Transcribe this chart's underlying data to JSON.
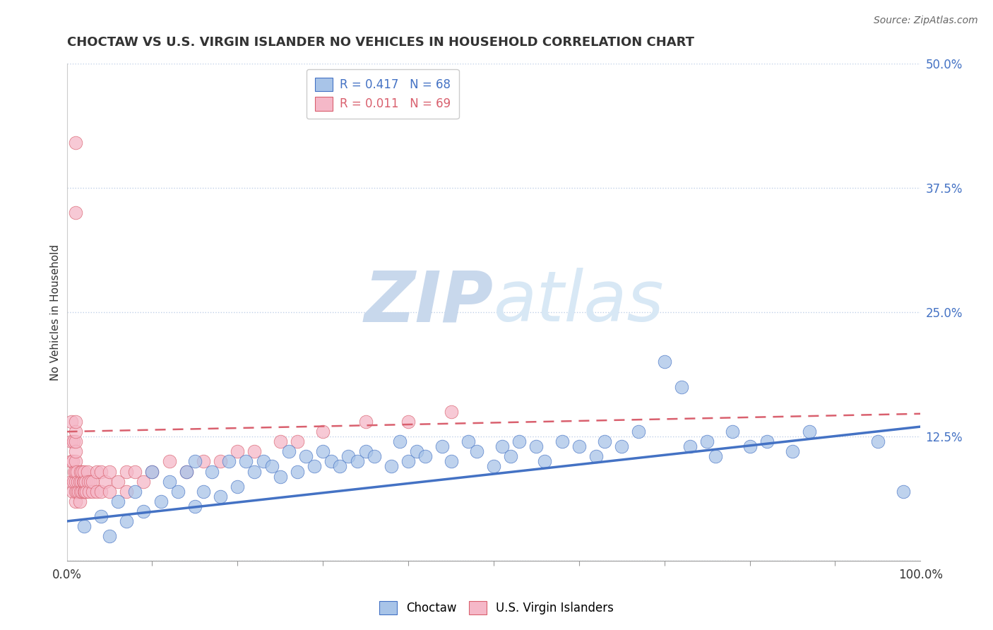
{
  "title": "CHOCTAW VS U.S. VIRGIN ISLANDER NO VEHICLES IN HOUSEHOLD CORRELATION CHART",
  "source_text": "Source: ZipAtlas.com",
  "ylabel": "No Vehicles in Household",
  "xlim": [
    0.0,
    1.0
  ],
  "ylim": [
    0.0,
    0.5
  ],
  "yticks": [
    0.0,
    0.125,
    0.25,
    0.375,
    0.5
  ],
  "ytick_labels": [
    "",
    "12.5%",
    "25.0%",
    "37.5%",
    "50.0%"
  ],
  "xtick_labels": [
    "0.0%",
    "100.0%"
  ],
  "legend_blue_r": "R = 0.417",
  "legend_blue_n": "N = 68",
  "legend_pink_r": "R = 0.011",
  "legend_pink_n": "N = 69",
  "blue_color": "#a8c4e8",
  "pink_color": "#f5b8c8",
  "blue_line_color": "#4472c4",
  "pink_line_color": "#d9606e",
  "watermark_zip": "ZIP",
  "watermark_atlas": "atlas",
  "watermark_color": "#dce8f5",
  "blue_scatter_x": [
    0.02,
    0.04,
    0.05,
    0.06,
    0.07,
    0.08,
    0.09,
    0.1,
    0.11,
    0.12,
    0.13,
    0.14,
    0.15,
    0.15,
    0.16,
    0.17,
    0.18,
    0.19,
    0.2,
    0.21,
    0.22,
    0.23,
    0.24,
    0.25,
    0.26,
    0.27,
    0.28,
    0.29,
    0.3,
    0.31,
    0.32,
    0.33,
    0.34,
    0.35,
    0.36,
    0.38,
    0.39,
    0.4,
    0.41,
    0.42,
    0.44,
    0.45,
    0.47,
    0.48,
    0.5,
    0.51,
    0.52,
    0.53,
    0.55,
    0.56,
    0.58,
    0.6,
    0.62,
    0.63,
    0.65,
    0.67,
    0.7,
    0.72,
    0.73,
    0.75,
    0.76,
    0.78,
    0.8,
    0.82,
    0.85,
    0.87,
    0.95,
    0.98
  ],
  "blue_scatter_y": [
    0.035,
    0.045,
    0.025,
    0.06,
    0.04,
    0.07,
    0.05,
    0.09,
    0.06,
    0.08,
    0.07,
    0.09,
    0.055,
    0.1,
    0.07,
    0.09,
    0.065,
    0.1,
    0.075,
    0.1,
    0.09,
    0.1,
    0.095,
    0.085,
    0.11,
    0.09,
    0.105,
    0.095,
    0.11,
    0.1,
    0.095,
    0.105,
    0.1,
    0.11,
    0.105,
    0.095,
    0.12,
    0.1,
    0.11,
    0.105,
    0.115,
    0.1,
    0.12,
    0.11,
    0.095,
    0.115,
    0.105,
    0.12,
    0.115,
    0.1,
    0.12,
    0.115,
    0.105,
    0.12,
    0.115,
    0.13,
    0.2,
    0.175,
    0.115,
    0.12,
    0.105,
    0.13,
    0.115,
    0.12,
    0.11,
    0.13,
    0.12,
    0.07
  ],
  "pink_scatter_x": [
    0.005,
    0.005,
    0.005,
    0.005,
    0.007,
    0.007,
    0.008,
    0.008,
    0.009,
    0.01,
    0.01,
    0.01,
    0.01,
    0.01,
    0.01,
    0.01,
    0.01,
    0.01,
    0.01,
    0.01,
    0.012,
    0.012,
    0.013,
    0.014,
    0.015,
    0.015,
    0.016,
    0.016,
    0.017,
    0.018,
    0.018,
    0.019,
    0.02,
    0.02,
    0.02,
    0.021,
    0.022,
    0.023,
    0.024,
    0.025,
    0.026,
    0.028,
    0.03,
    0.03,
    0.035,
    0.035,
    0.04,
    0.04,
    0.045,
    0.05,
    0.05,
    0.06,
    0.07,
    0.07,
    0.08,
    0.09,
    0.1,
    0.12,
    0.14,
    0.16,
    0.18,
    0.2,
    0.22,
    0.25,
    0.27,
    0.3,
    0.35,
    0.4,
    0.45
  ],
  "pink_scatter_y": [
    0.08,
    0.1,
    0.12,
    0.14,
    0.07,
    0.1,
    0.08,
    0.12,
    0.09,
    0.06,
    0.07,
    0.08,
    0.09,
    0.1,
    0.11,
    0.12,
    0.13,
    0.14,
    0.35,
    0.42,
    0.07,
    0.09,
    0.08,
    0.07,
    0.06,
    0.08,
    0.07,
    0.09,
    0.08,
    0.07,
    0.09,
    0.08,
    0.07,
    0.08,
    0.09,
    0.07,
    0.08,
    0.07,
    0.09,
    0.08,
    0.07,
    0.08,
    0.07,
    0.08,
    0.07,
    0.09,
    0.07,
    0.09,
    0.08,
    0.07,
    0.09,
    0.08,
    0.09,
    0.07,
    0.09,
    0.08,
    0.09,
    0.1,
    0.09,
    0.1,
    0.1,
    0.11,
    0.11,
    0.12,
    0.12,
    0.13,
    0.14,
    0.14,
    0.15
  ],
  "blue_trend_x": [
    0.0,
    1.0
  ],
  "blue_trend_y": [
    0.04,
    0.135
  ],
  "pink_trend_x": [
    0.0,
    1.0
  ],
  "pink_trend_y": [
    0.13,
    0.148
  ],
  "title_fontsize": 13,
  "axis_label_fontsize": 11,
  "tick_fontsize": 12,
  "legend_fontsize": 12,
  "source_fontsize": 10
}
